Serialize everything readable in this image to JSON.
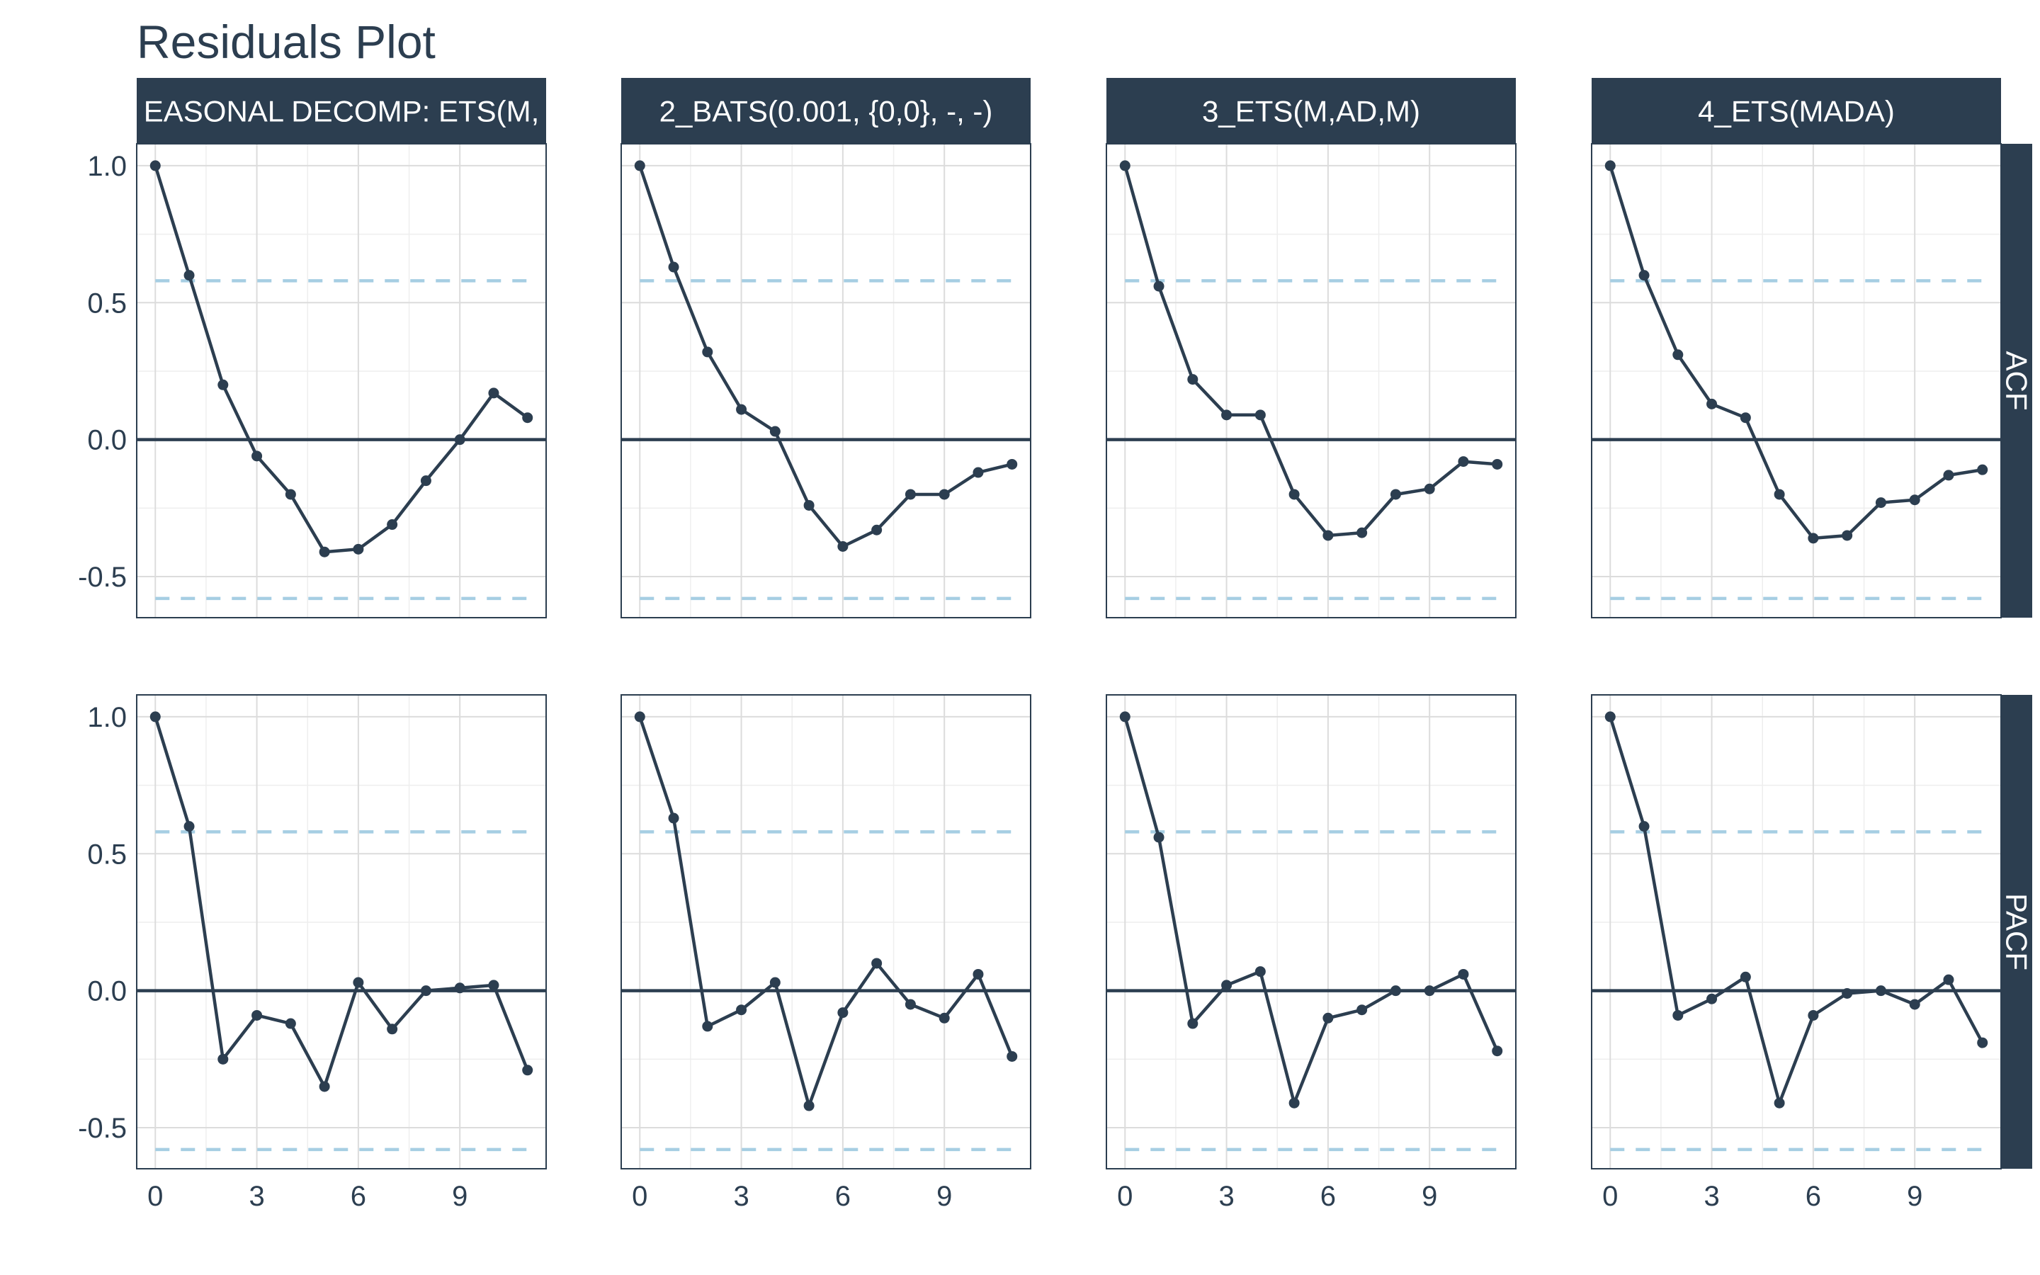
{
  "chart_data": {
    "type": "line",
    "title": "Residuals Plot",
    "xlabel": "",
    "ylabel": "",
    "x_ticks": [
      0,
      3,
      6,
      9
    ],
    "y_ticks": [
      1.0,
      0.5,
      0.0,
      -0.5
    ],
    "y_tick_labels": [
      "1.0",
      "0.5",
      "0.0",
      "-0.5"
    ],
    "xlim": [
      -0.55,
      11.55
    ],
    "ylim": [
      -0.65,
      1.08
    ],
    "grid": true,
    "confidence_band": 0.58,
    "lags": [
      0,
      1,
      2,
      3,
      4,
      5,
      6,
      7,
      8,
      9,
      10,
      11
    ],
    "column_facets": [
      "EASONAL DECOMP: ETS(M,",
      "2_BATS(0.001, {0,0}, -, -)",
      "3_ETS(M,AD,M)",
      "4_ETS(MADA)"
    ],
    "row_facets": [
      "ACF",
      "PACF"
    ],
    "panels": [
      {
        "row": "ACF",
        "column": "EASONAL DECOMP: ETS(M,",
        "values": [
          1.0,
          0.6,
          0.2,
          -0.06,
          -0.2,
          -0.41,
          -0.4,
          -0.31,
          -0.15,
          0.0,
          0.17,
          0.08
        ]
      },
      {
        "row": "ACF",
        "column": "2_BATS(0.001, {0,0}, -, -)",
        "values": [
          1.0,
          0.63,
          0.32,
          0.11,
          0.03,
          -0.24,
          -0.39,
          -0.33,
          -0.2,
          -0.2,
          -0.12,
          -0.09
        ]
      },
      {
        "row": "ACF",
        "column": "3_ETS(M,AD,M)",
        "values": [
          1.0,
          0.56,
          0.22,
          0.09,
          0.09,
          -0.2,
          -0.35,
          -0.34,
          -0.2,
          -0.18,
          -0.08,
          -0.09
        ]
      },
      {
        "row": "ACF",
        "column": "4_ETS(MADA)",
        "values": [
          1.0,
          0.6,
          0.31,
          0.13,
          0.08,
          -0.2,
          -0.36,
          -0.35,
          -0.23,
          -0.22,
          -0.13,
          -0.11
        ]
      },
      {
        "row": "PACF",
        "column": "EASONAL DECOMP: ETS(M,",
        "values": [
          1.0,
          0.6,
          -0.25,
          -0.09,
          -0.12,
          -0.35,
          0.03,
          -0.14,
          0.0,
          0.01,
          0.02,
          -0.29
        ]
      },
      {
        "row": "PACF",
        "column": "2_BATS(0.001, {0,0}, -, -)",
        "values": [
          1.0,
          0.63,
          -0.13,
          -0.07,
          0.03,
          -0.42,
          -0.08,
          0.1,
          -0.05,
          -0.1,
          0.06,
          -0.24
        ]
      },
      {
        "row": "PACF",
        "column": "3_ETS(M,AD,M)",
        "values": [
          1.0,
          0.56,
          -0.12,
          0.02,
          0.07,
          -0.41,
          -0.1,
          -0.07,
          0.0,
          0.0,
          0.06,
          -0.22
        ]
      },
      {
        "row": "PACF",
        "column": "4_ETS(MADA)",
        "values": [
          1.0,
          0.6,
          -0.09,
          -0.03,
          0.05,
          -0.41,
          -0.09,
          -0.01,
          0.0,
          -0.05,
          0.04,
          -0.19
        ]
      }
    ]
  },
  "colors": {
    "primary": "#2c3e50",
    "confidence_band": "#a6cee3",
    "grid": "#dcdcdc"
  }
}
